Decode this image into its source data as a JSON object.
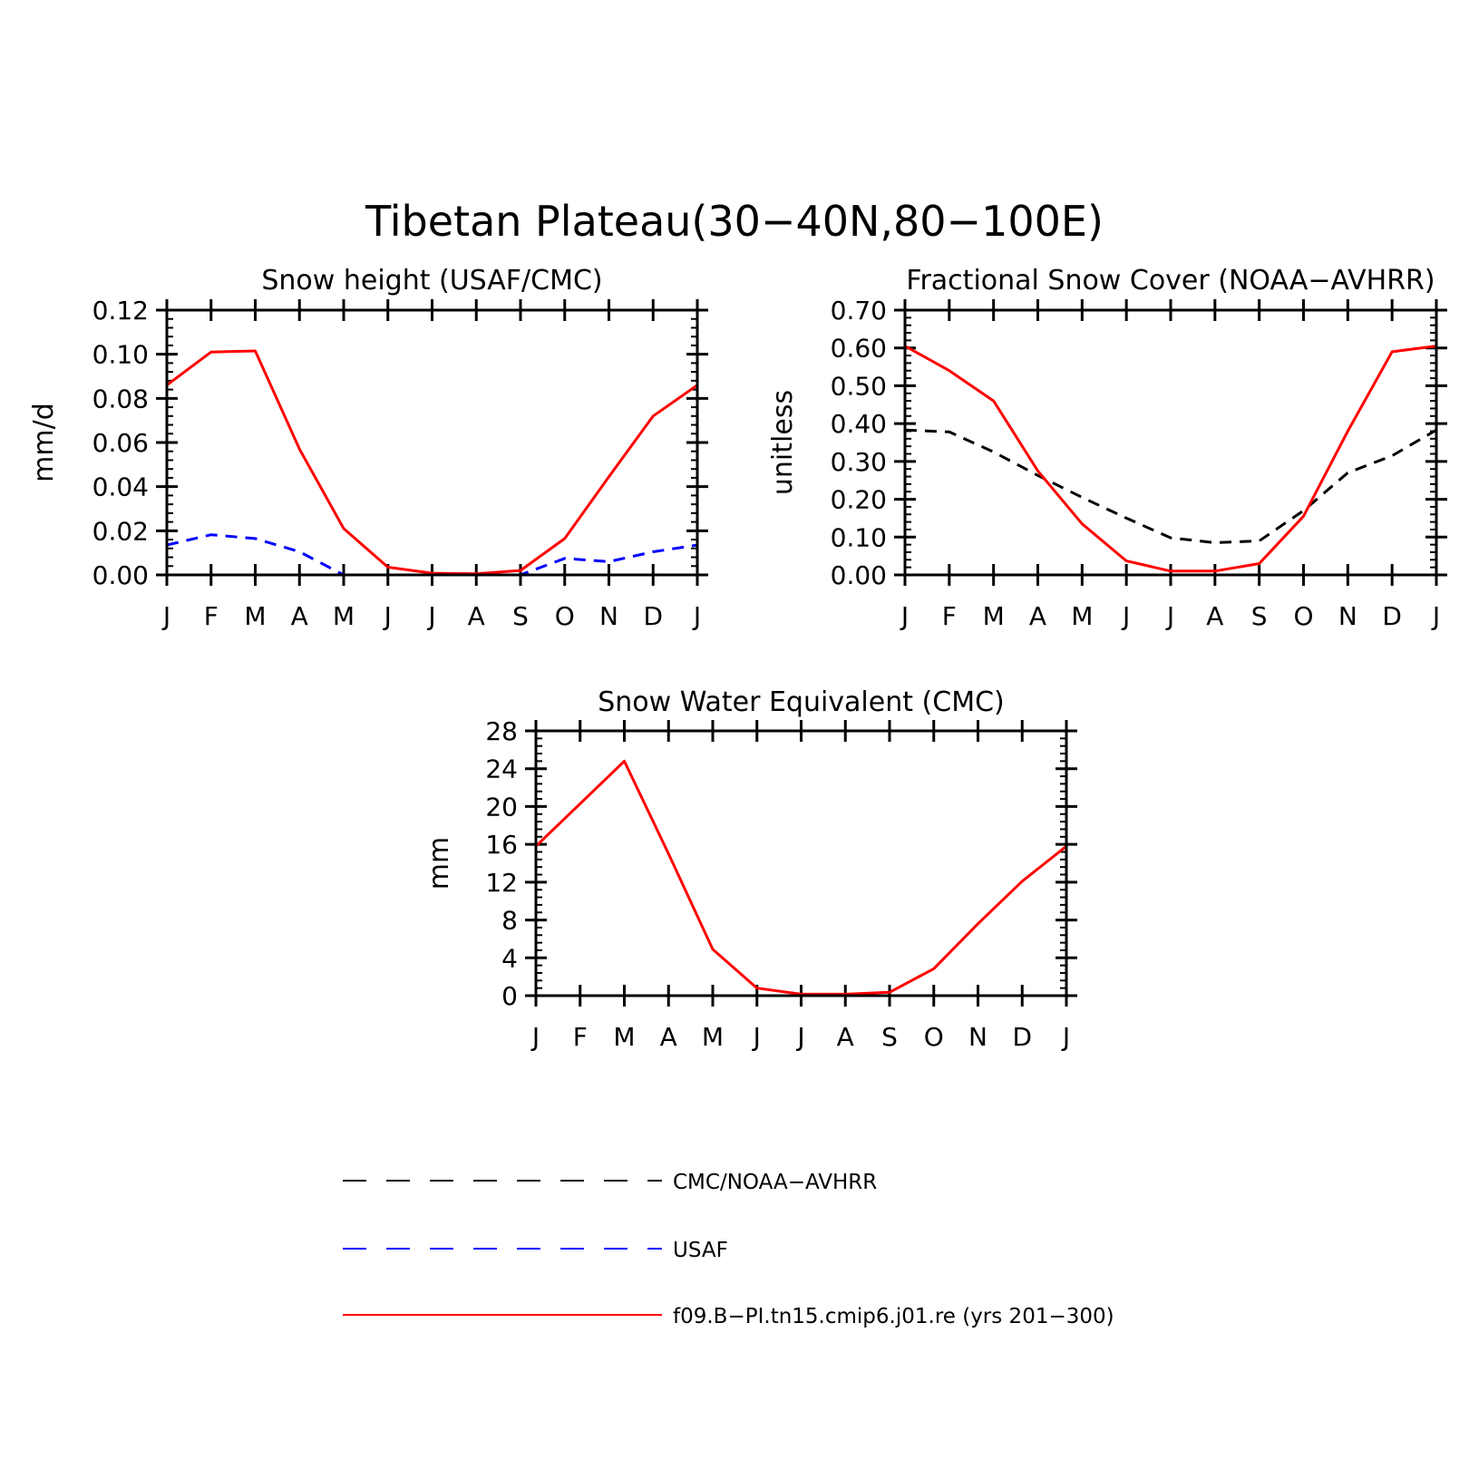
{
  "figure": {
    "title": "Tibetan Plateau(30−40N,80−100E)"
  },
  "colors": {
    "model": "#ff0000",
    "usaf": "#0000ff",
    "cmc": "#000000"
  },
  "legend": {
    "items": [
      {
        "label": "CMC/NOAA−AVHRR",
        "color": "#000000",
        "style": "dashed-long"
      },
      {
        "label": "USAF",
        "color": "#0000ff",
        "style": "dashed-long"
      },
      {
        "label": "f09.B−PI.tn15.cmip6.j01.re (yrs 201−300)",
        "color": "#ff0000",
        "style": "solid"
      }
    ]
  },
  "chart_data": [
    {
      "type": "line",
      "title": "Snow height (USAF/CMC)",
      "xlabel": "",
      "ylabel": "mm/d",
      "categories": [
        "J",
        "F",
        "M",
        "A",
        "M",
        "J",
        "J",
        "A",
        "S",
        "O",
        "N",
        "D",
        "J"
      ],
      "ylim": [
        0,
        0.12
      ],
      "yticks": [
        "0.00",
        "0.02",
        "0.04",
        "0.06",
        "0.08",
        "0.10",
        "0.12"
      ],
      "series": [
        {
          "name": "f09.B−PI.tn15.cmip6.j01.re (yrs 201−300)",
          "color": "#ff0000",
          "dash": "solid",
          "values": [
            0.086,
            0.101,
            0.1015,
            0.057,
            0.021,
            0.0035,
            0.0008,
            0.0005,
            0.002,
            0.0165,
            0.0445,
            0.072,
            0.086
          ]
        },
        {
          "name": "USAF",
          "color": "#0000ff",
          "dash": "dashed",
          "values": [
            0.0135,
            0.0182,
            0.0165,
            0.0105,
            0.0,
            0.0,
            0.0,
            0.0,
            0.0,
            0.0075,
            0.006,
            0.0105,
            0.0135
          ]
        },
        {
          "name": "CMC/NOAA−AVHRR",
          "color": "#000000",
          "dash": "solid",
          "values": [
            0,
            0,
            0,
            0,
            0,
            0,
            0,
            0,
            0,
            0,
            0,
            0,
            0
          ]
        }
      ]
    },
    {
      "type": "line",
      "title": "Fractional Snow Cover (NOAA−AVHRR)",
      "xlabel": "",
      "ylabel": "unitless",
      "categories": [
        "J",
        "F",
        "M",
        "A",
        "M",
        "J",
        "J",
        "A",
        "S",
        "O",
        "N",
        "D",
        "J"
      ],
      "ylim": [
        0,
        0.7
      ],
      "yticks": [
        "0.00",
        "0.10",
        "0.20",
        "0.30",
        "0.40",
        "0.50",
        "0.60",
        "0.70"
      ],
      "series": [
        {
          "name": "f09.B−PI.tn15.cmip6.j01.re (yrs 201−300)",
          "color": "#ff0000",
          "dash": "solid",
          "values": [
            0.605,
            0.54,
            0.46,
            0.275,
            0.135,
            0.037,
            0.01,
            0.01,
            0.03,
            0.155,
            0.38,
            0.59,
            0.605
          ]
        },
        {
          "name": "CMC/NOAA−AVHRR",
          "color": "#000000",
          "dash": "dashed",
          "values": [
            0.383,
            0.378,
            0.325,
            0.263,
            0.205,
            0.15,
            0.098,
            0.085,
            0.09,
            0.17,
            0.27,
            0.315,
            0.383
          ]
        }
      ]
    },
    {
      "type": "line",
      "title": "Snow Water Equivalent (CMC)",
      "xlabel": "",
      "ylabel": "mm",
      "categories": [
        "J",
        "F",
        "M",
        "A",
        "M",
        "J",
        "J",
        "A",
        "S",
        "O",
        "N",
        "D",
        "J"
      ],
      "ylim": [
        0,
        28
      ],
      "yticks": [
        "0",
        "4",
        "8",
        "12",
        "16",
        "20",
        "24",
        "28"
      ],
      "series": [
        {
          "name": "f09.B−PI.tn15.cmip6.j01.re (yrs 201−300)",
          "color": "#ff0000",
          "dash": "solid",
          "values": [
            15.8,
            20.3,
            24.8,
            15.0,
            4.9,
            0.8,
            0.15,
            0.15,
            0.35,
            2.85,
            7.6,
            12.1,
            15.8
          ]
        },
        {
          "name": "CMC/NOAA−AVHRR",
          "color": "#000000",
          "dash": "solid",
          "values": [
            0,
            0,
            0,
            0,
            0,
            0,
            0,
            0,
            0,
            0,
            0,
            0,
            0
          ]
        }
      ]
    }
  ]
}
